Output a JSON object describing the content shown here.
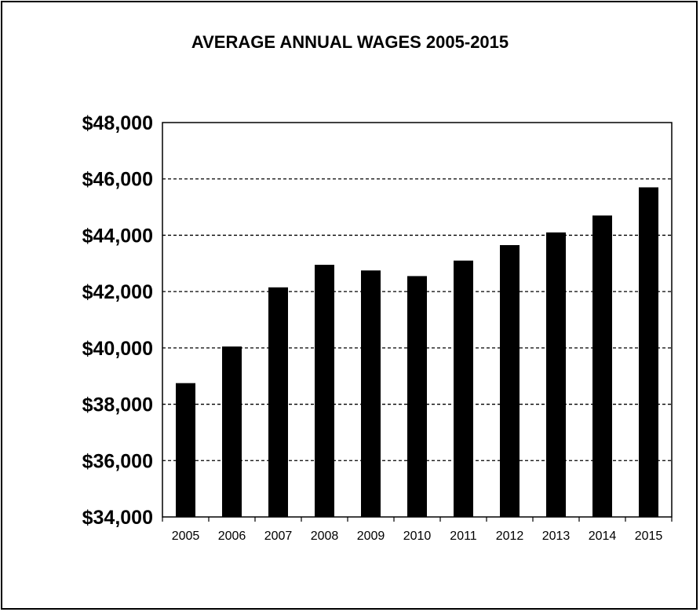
{
  "chart_data": {
    "type": "bar",
    "title": "AVERAGE ANNUAL WAGES 2005-2015",
    "xlabel": "",
    "ylabel": "",
    "categories": [
      "2005",
      "2006",
      "2007",
      "2008",
      "2009",
      "2010",
      "2011",
      "2012",
      "2013",
      "2014",
      "2015"
    ],
    "values": [
      38750,
      40050,
      42150,
      42950,
      42750,
      42550,
      43100,
      43650,
      44100,
      44700,
      45700
    ],
    "ylim": [
      34000,
      48000
    ],
    "y_ticks": [
      34000,
      36000,
      38000,
      40000,
      42000,
      44000,
      46000,
      48000
    ],
    "y_tick_labels": [
      "$34,000",
      "$36,000",
      "$38,000",
      "$40,000",
      "$42,000",
      "$44,000",
      "$46,000",
      "$48,000"
    ],
    "grid": true,
    "grid_style": "dashed",
    "bar_color": "#000000",
    "legend": false
  }
}
